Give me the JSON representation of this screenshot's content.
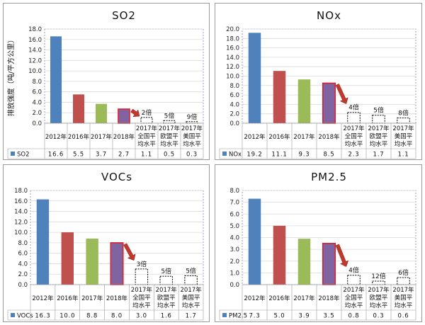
{
  "colors": {
    "blue": "#4f81bd",
    "red": "#c0504d",
    "green": "#9bbb59",
    "purple": "#8064a2",
    "highlight_border": "#e0202a",
    "arrow": "#c0392b",
    "grid": "#d9d9d9",
    "dashed_box": "#000000"
  },
  "chart_data": [
    {
      "type": "bar",
      "title": "SO2",
      "ylabel": "排放强度（吨/平方公里）",
      "ylim": [
        0,
        18
      ],
      "yticks": [
        "0.0",
        "2.0",
        "4.0",
        "6.0",
        "8.0",
        "10.0",
        "12.0",
        "14.0",
        "16.0",
        "18.0"
      ],
      "categories": [
        [
          "2012年"
        ],
        [
          "2016年"
        ],
        [
          "2017年"
        ],
        [
          "2018年"
        ],
        [
          "2017年",
          "全国平",
          "均水平"
        ],
        [
          "2017年",
          "欧盟平",
          "均水平"
        ],
        [
          "2017年",
          "美国平",
          "均水平"
        ]
      ],
      "legend": "SO2",
      "values": [
        16.6,
        5.5,
        3.7,
        2.7,
        1.1,
        0.5,
        0.3
      ],
      "value_labels": [
        "16.6",
        "5.5",
        "3.7",
        "2.7",
        "1.1",
        "0.5",
        "0.3"
      ],
      "multiples": [
        "2倍",
        "5倍",
        "9倍"
      ]
    },
    {
      "type": "bar",
      "title": "NOx",
      "ylabel": "",
      "ylim": [
        0,
        20
      ],
      "yticks": [
        "0.0",
        "2.0",
        "4.0",
        "6.0",
        "8.0",
        "10.0",
        "12.0",
        "14.0",
        "16.0",
        "18.0",
        "20.0"
      ],
      "categories": [
        [
          "2012年"
        ],
        [
          "2016年"
        ],
        [
          "2017年"
        ],
        [
          "2018年"
        ],
        [
          "2017年",
          "全国平",
          "均水平"
        ],
        [
          "2017年",
          "欧盟平",
          "均水平"
        ],
        [
          "2017年",
          "美国平",
          "均水平"
        ]
      ],
      "legend": "NOx",
      "values": [
        19.2,
        11.1,
        9.3,
        8.5,
        2.3,
        1.7,
        1.1
      ],
      "value_labels": [
        "19.2",
        "11.1",
        "9.3",
        "8.5",
        "2.3",
        "1.7",
        "1.1"
      ],
      "multiples": [
        "4倍",
        "5倍",
        "8倍"
      ]
    },
    {
      "type": "bar",
      "title": "VOCs",
      "ylabel": "",
      "ylim": [
        0,
        18
      ],
      "yticks": [
        "0.0",
        "2.0",
        "4.0",
        "6.0",
        "8.0",
        "10.0",
        "12.0",
        "14.0",
        "16.0",
        "18.0"
      ],
      "categories": [
        [
          "2012年"
        ],
        [
          "2016年"
        ],
        [
          "2017年"
        ],
        [
          "2018年"
        ],
        [
          "2017年",
          "全国平",
          "均水平"
        ],
        [
          "2017年",
          "欧盟平",
          "均水平"
        ],
        [
          "2017年",
          "美国平",
          "均水平"
        ]
      ],
      "legend": "VOCs",
      "values": [
        16.3,
        10.0,
        8.8,
        8.0,
        3.0,
        1.6,
        1.7
      ],
      "value_labels": [
        "16.3",
        "10.0",
        "8.8",
        "8.0",
        "3.0",
        "1.6",
        "1.7"
      ],
      "multiples": [
        "3倍",
        "5倍",
        "5倍"
      ]
    },
    {
      "type": "bar",
      "title": "PM2.5",
      "ylabel": "",
      "ylim": [
        0,
        8
      ],
      "yticks": [
        "0.0",
        "1.0",
        "2.0",
        "3.0",
        "4.0",
        "5.0",
        "6.0",
        "7.0",
        "8.0"
      ],
      "categories": [
        [
          "2012年"
        ],
        [
          "2016年"
        ],
        [
          "2017年"
        ],
        [
          "2018年"
        ],
        [
          "2017年",
          "全国平",
          "均水平"
        ],
        [
          "2017年",
          "欧盟平",
          "均水平"
        ],
        [
          "2017年",
          "美国平",
          "均水平"
        ]
      ],
      "legend": "PM2.5",
      "values": [
        7.3,
        5.0,
        3.9,
        3.5,
        0.8,
        0.3,
        0.6
      ],
      "value_labels": [
        "7.3",
        "5.0",
        "3.9",
        "3.5",
        "0.8",
        "0.3",
        "0.6"
      ],
      "multiples": [
        "4倍",
        "12倍",
        "6倍"
      ]
    }
  ]
}
